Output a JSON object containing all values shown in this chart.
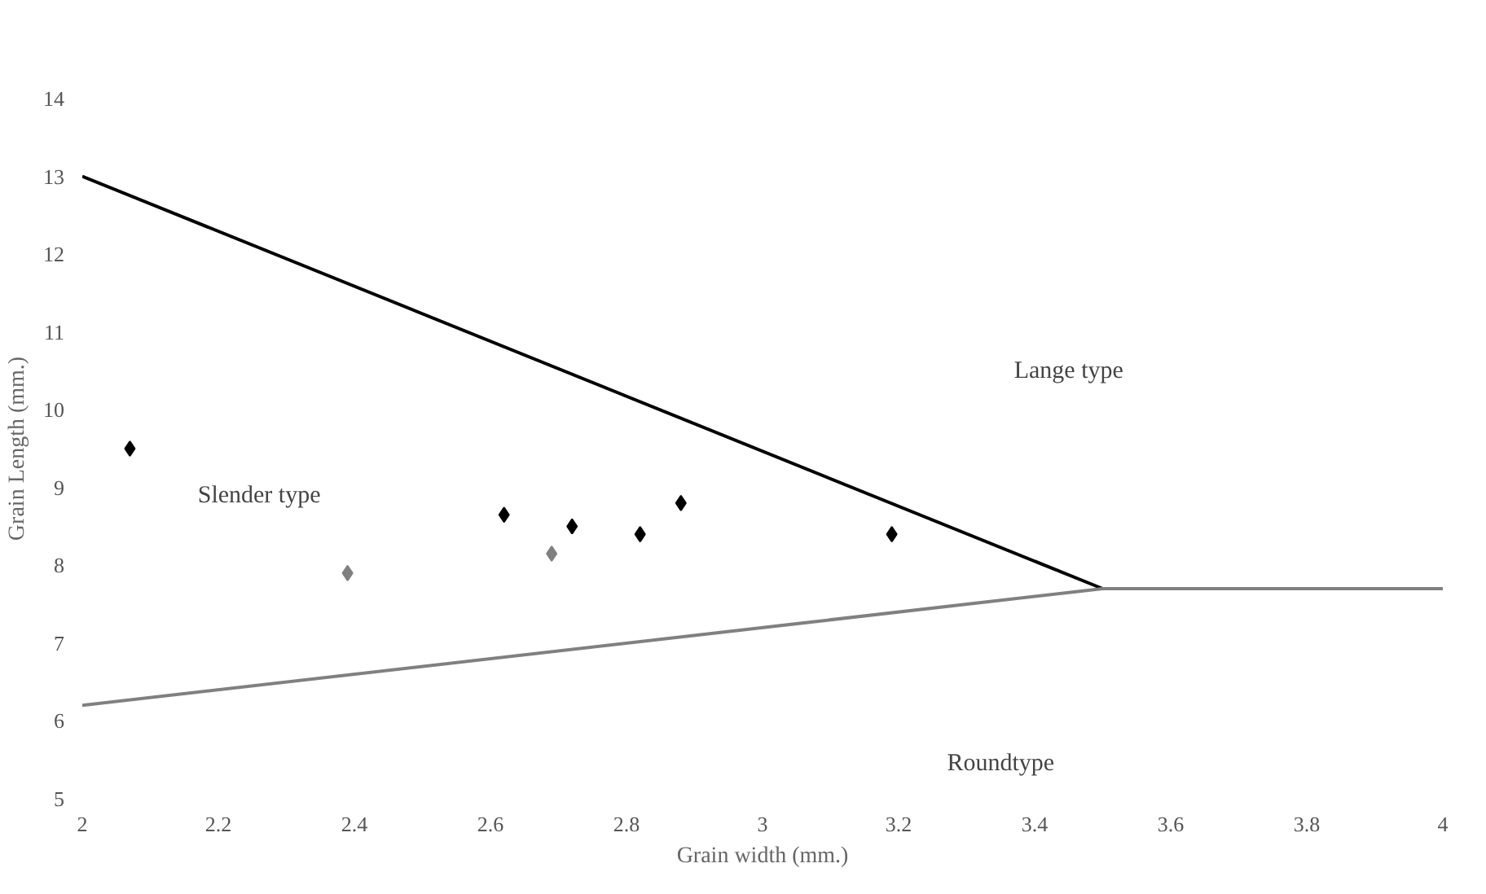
{
  "chart_data": {
    "type": "scatter",
    "xlabel": "Grain width (mm.)",
    "ylabel": "Grain Length (mm.)",
    "xlim": [
      2,
      4
    ],
    "ylim": [
      5,
      14
    ],
    "xticks": [
      2,
      2.2,
      2.4,
      2.6,
      2.8,
      3,
      3.2,
      3.4,
      3.6,
      3.8,
      4
    ],
    "yticks": [
      5,
      6,
      7,
      8,
      9,
      10,
      11,
      12,
      13,
      14
    ],
    "grid": false,
    "series": [
      {
        "marker": "diamond",
        "x": [
          2.07,
          2.39,
          2.62,
          2.69,
          2.72,
          2.82,
          2.88,
          3.19
        ],
        "values": [
          9.5,
          7.9,
          8.65,
          8.15,
          8.5,
          8.4,
          8.8,
          8.4
        ],
        "colors": [
          "#000000",
          "#808080",
          "#000000",
          "#808080",
          "#000000",
          "#000000",
          "#000000",
          "#000000"
        ]
      },
      {
        "type": "line",
        "x": [
          2,
          3.5
        ],
        "values": [
          13,
          7.7
        ],
        "color": "#000000"
      },
      {
        "type": "line",
        "x": [
          2,
          3.5,
          4
        ],
        "values": [
          6.2,
          7.7,
          7.7
        ],
        "color": "#808080"
      }
    ],
    "annotations": [
      "Slender type",
      "Lange type",
      "Roundtype"
    ]
  }
}
